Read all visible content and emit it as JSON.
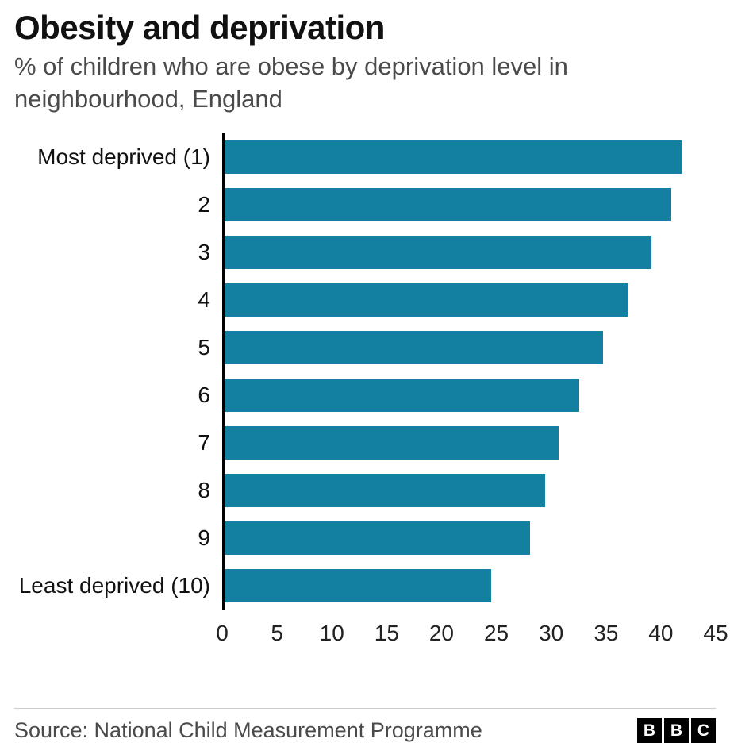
{
  "header": {
    "title": "Obesity and deprivation",
    "subtitle": "% of children who are obese by deprivation level in neighbourhood, England"
  },
  "chart_data": {
    "type": "bar",
    "orientation": "horizontal",
    "title": "Obesity and deprivation",
    "subtitle": "% of children who are obese by deprivation level in neighbourhood, England",
    "categories": [
      "Most deprived (1)",
      "2",
      "3",
      "4",
      "5",
      "6",
      "7",
      "8",
      "9",
      "Least deprived (10)"
    ],
    "values": [
      41.9,
      40.9,
      39.1,
      36.9,
      34.7,
      32.5,
      30.6,
      29.4,
      28.0,
      24.4
    ],
    "xlabel": "",
    "ylabel": "",
    "xlim": [
      0,
      45
    ],
    "x_ticks": [
      0,
      5,
      10,
      15,
      20,
      25,
      30,
      35,
      40,
      45
    ],
    "grid": false,
    "legend": false,
    "bar_color": "#1380A1",
    "axis_line_color": "#000000"
  },
  "footer": {
    "source": "Source: National Child Measurement Programme",
    "logo_letters": [
      "B",
      "B",
      "C"
    ]
  }
}
